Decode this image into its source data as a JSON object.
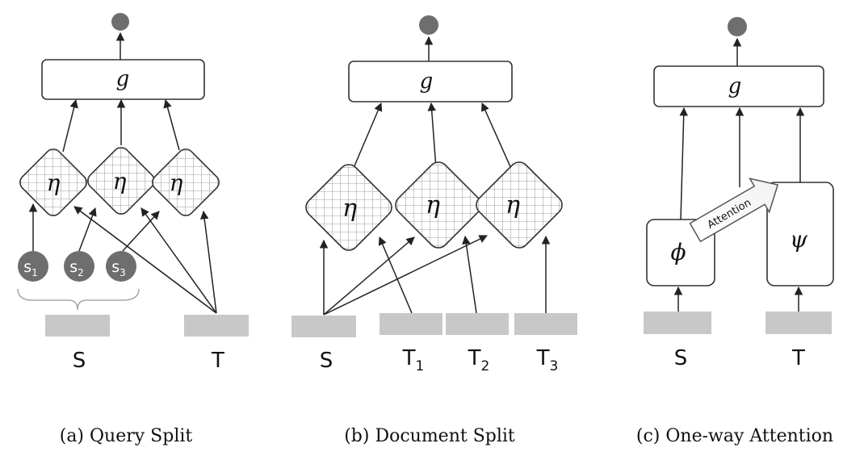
{
  "colors": {
    "dot": "#6e6e6e",
    "input_bar": "#c8c8c8",
    "stroke": "#333333",
    "grid": "#b9b9b9"
  },
  "symbols": {
    "g": "g",
    "eta": "η",
    "phi": "ϕ",
    "psi": "ψ",
    "attention": "Attention"
  },
  "panel_a": {
    "caption": "(a) Query Split",
    "query_label": "S",
    "doc_label": "T",
    "segments": [
      {
        "base": "s",
        "sub": "1"
      },
      {
        "base": "s",
        "sub": "2"
      },
      {
        "base": "s",
        "sub": "3"
      }
    ]
  },
  "panel_b": {
    "caption": "(b) Document Split",
    "query_label": "S",
    "doc_segments": [
      {
        "base": "T",
        "sub": "1"
      },
      {
        "base": "T",
        "sub": "2"
      },
      {
        "base": "T",
        "sub": "3"
      }
    ]
  },
  "panel_c": {
    "caption": "(c) One-way Attention",
    "query_label": "S",
    "doc_label": "T"
  }
}
